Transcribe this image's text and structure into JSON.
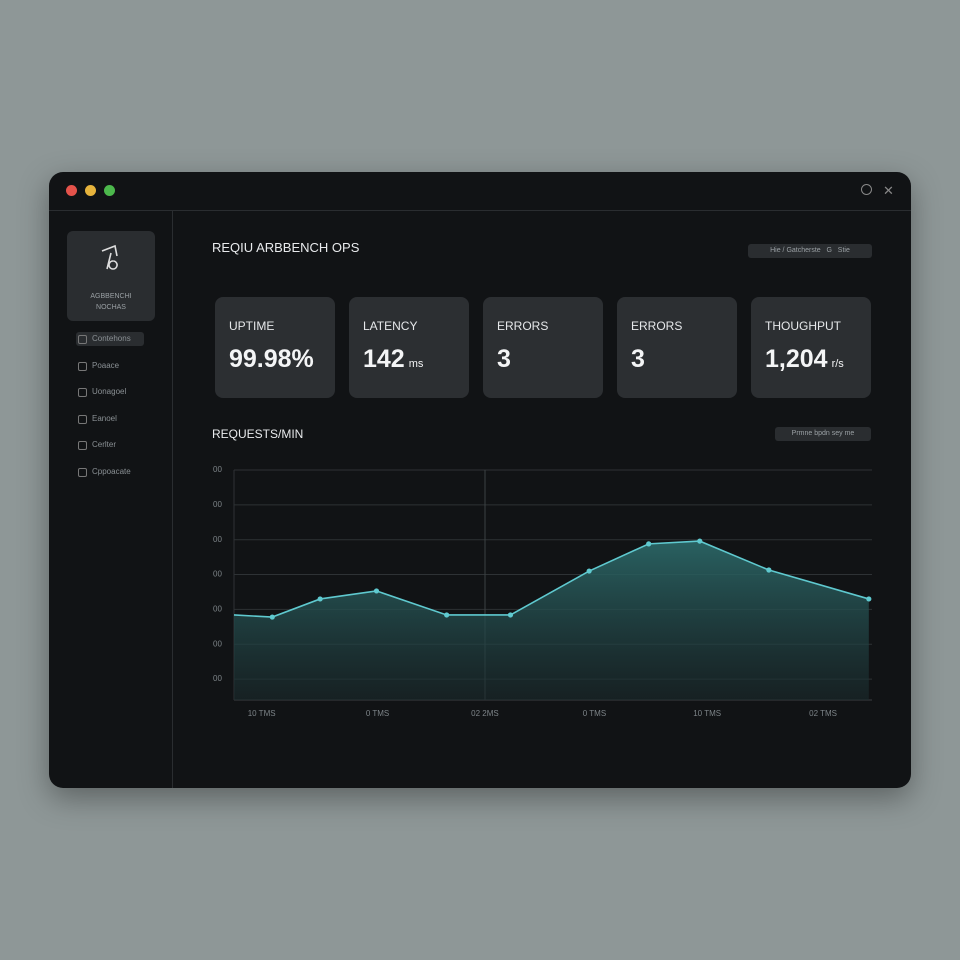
{
  "sidebar": {
    "brand": [
      "AGBBENCHI",
      "NOCHAS"
    ],
    "items": [
      "Contehons",
      "Poaace",
      "Uonagoel",
      "Eanoel",
      "Cerlter",
      "Cppoacate"
    ]
  },
  "header": {
    "title": "REQIU ARBBENCH OPS",
    "filter": "Hie / Gatcherste   G   Stie"
  },
  "kpis": [
    {
      "label": "UPTIME",
      "value": "99.98%"
    },
    {
      "label": "LATENCY",
      "value": "142",
      "unit": "ms"
    },
    {
      "label": "ERRORS",
      "value": "3"
    },
    {
      "label": "ERRORS",
      "value": "3"
    },
    {
      "label": "THOUGHPUT",
      "value": "1,204",
      "unit": "r/s"
    }
  ],
  "chart_data": {
    "type": "line",
    "title": "REQUESTS/MIN",
    "control": "Prmne bpdn sey me",
    "x": [
      0,
      3.6,
      8.1,
      13.4,
      20,
      26,
      33.4,
      39,
      43.8,
      50.3,
      59.7
    ],
    "values": [
      28.4,
      27.8,
      33.0,
      35.3,
      28.4,
      28.4,
      41.0,
      48.8,
      49.6,
      41.3,
      33.0
    ],
    "color": "#5fc9cf",
    "xlim": [
      0,
      60
    ],
    "xticks": [
      {
        "value": 2.6,
        "label": "10 TMS"
      },
      {
        "value": 13.5,
        "label": "0 TMS"
      },
      {
        "value": 23.6,
        "label": "02 2MS"
      },
      {
        "value": 33.9,
        "label": "0 TMS"
      },
      {
        "value": 44.5,
        "label": "10 TMS"
      },
      {
        "value": 55.4,
        "label": "02 TMS"
      }
    ],
    "ylim": [
      4,
      70
    ],
    "yticks": [
      {
        "value": 10,
        "label": "00"
      },
      {
        "value": 20,
        "label": "00"
      },
      {
        "value": 30,
        "label": "00"
      },
      {
        "value": 40,
        "label": "00"
      },
      {
        "value": 50,
        "label": "00"
      },
      {
        "value": 60,
        "label": "00"
      },
      {
        "value": 70,
        "label": "00"
      }
    ],
    "grid": true
  }
}
